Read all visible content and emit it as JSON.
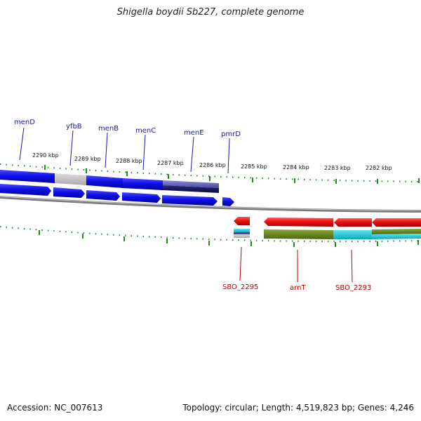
{
  "title": "Shigella boydii Sb227, complete genome",
  "footer": {
    "accession": "Accession: NC_007613",
    "topology": "Topology: circular; Length: 4,519,823 bp; Genes: 4,246"
  },
  "colors": {
    "forward_gene": "#1414e0",
    "reverse_gene": "#ee1111",
    "backbone": "#808080",
    "ticks": "#1e8c1e",
    "orthologous_grey": "#c4c4c4",
    "cog_olive": "#6e8c1e",
    "cog_cyan": "#22c8d8",
    "cog_dark": "#14145a",
    "cog_slate": "#6a6ab8"
  },
  "chart_data": {
    "type": "genome-map",
    "strand_forward_genes": [
      "menD",
      "yfbB",
      "menB",
      "menC",
      "menE",
      "pmrD"
    ],
    "strand_reverse_genes": [
      "SBO_2295",
      "arnT",
      "SBO_2293"
    ],
    "tick_labels": [
      "2290 kbp",
      "2289 kbp",
      "2288 kbp",
      "2287 kbp",
      "2286 kbp",
      "2285 kbp",
      "2284 kbp",
      "2283 kbp",
      "2282 kbp"
    ]
  }
}
